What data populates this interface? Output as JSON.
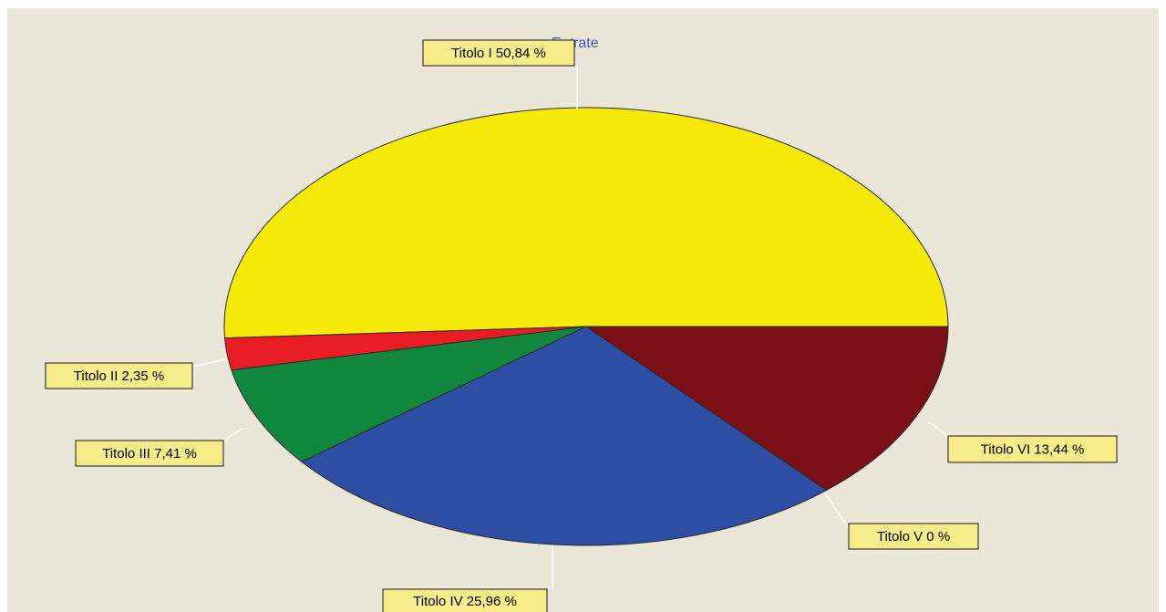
{
  "chart_data": {
    "type": "pie",
    "title": "Entrate",
    "series": [
      {
        "slices": [
          {
            "label": "Titolo I 50,84 %",
            "value": 50.84,
            "color": "#f5ea0a"
          },
          {
            "label": "Titolo II 2,35 %",
            "value": 2.35,
            "color": "#e81c24"
          },
          {
            "label": "Titolo III 7,41 %",
            "value": 7.41,
            "color": "#10873d"
          },
          {
            "label": "Titolo IV 25,96 %",
            "value": 25.96,
            "color": "#2e4ea3"
          },
          {
            "label": "Titolo V 0 %",
            "value": 0,
            "color": "#7a1015"
          },
          {
            "label": "Titolo VI 13,44 %",
            "value": 13.44,
            "color": "#7a1015"
          }
        ]
      }
    ],
    "legend": "none",
    "colors": {
      "plot_background": "#ebe6d8",
      "label_background": "#f6ec8a",
      "title_color": "#4457c2"
    }
  }
}
